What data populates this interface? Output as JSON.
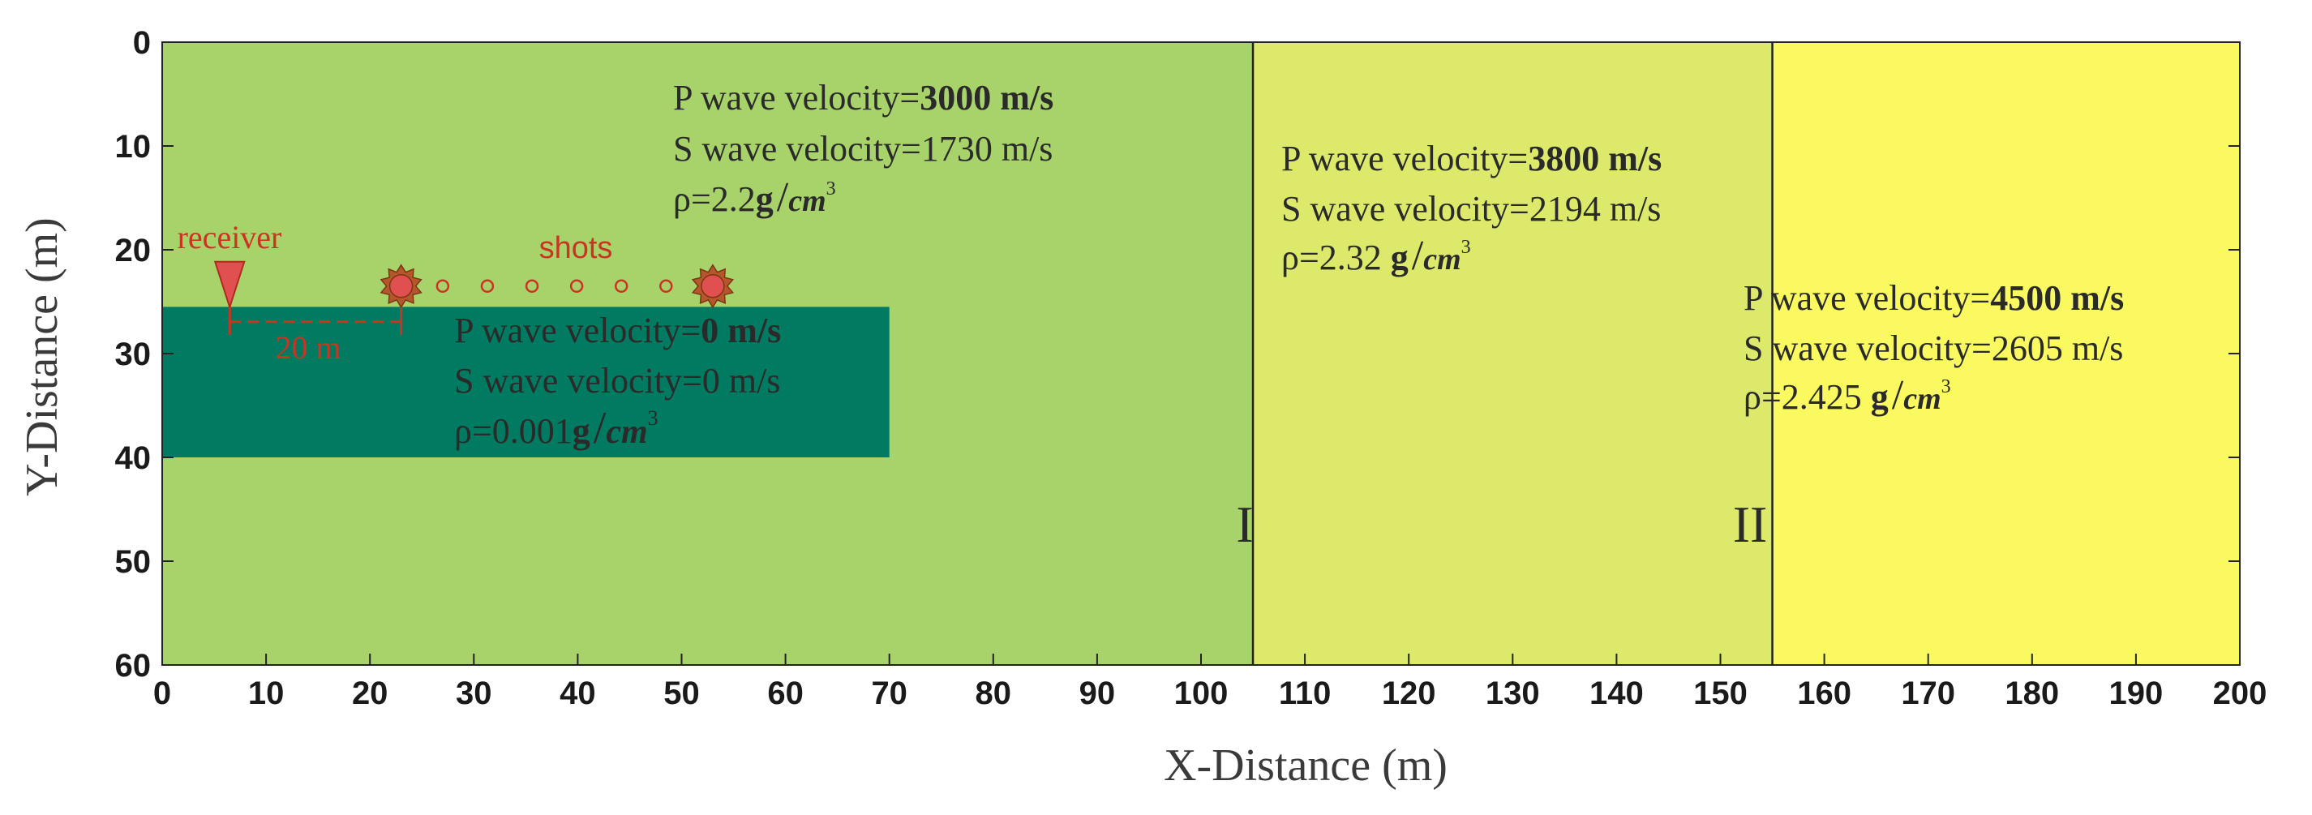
{
  "axes": {
    "x_title": "X-Distance (m)",
    "y_title": "Y-Distance (m)",
    "x_range": [
      0,
      200
    ],
    "y_range": [
      0,
      60
    ],
    "x_ticks": [
      "0",
      "10",
      "20",
      "30",
      "40",
      "50",
      "60",
      "70",
      "80",
      "90",
      "100",
      "110",
      "120",
      "130",
      "140",
      "150",
      "160",
      "170",
      "180",
      "190",
      "200"
    ],
    "y_ticks": [
      "0",
      "10",
      "20",
      "30",
      "40",
      "50",
      "60"
    ]
  },
  "colors": {
    "layer1": "#a8d36a",
    "layer2": "#dde96a",
    "layer3": "#fafa60",
    "cavity": "#007a60",
    "marker": "#e05050",
    "annotation": "#cc3322"
  },
  "layers": [
    {
      "x_range": [
        0,
        105
      ],
      "p_prefix": "P  wave velocity=",
      "p_value": "3000 m/s",
      "s_prefix": "S wave velocity=",
      "s_value": "1730 m/s",
      "rho_prefix": "ρ=2.2",
      "rho_unit": "g",
      "rho_cm": "cm",
      "rho_exp": "3"
    },
    {
      "x_range": [
        105,
        155
      ],
      "boundary_label": "I",
      "p_prefix": "P  wave velocity=",
      "p_value": "3800 m/s",
      "s_prefix": "S wave velocity=",
      "s_value": "2194 m/s",
      "rho_prefix": "ρ=2.32 ",
      "rho_unit": "g",
      "rho_cm": "cm",
      "rho_exp": "3"
    },
    {
      "x_range": [
        155,
        200
      ],
      "boundary_label": "II",
      "p_prefix": "P  wave velocity=",
      "p_value": "4500 m/s",
      "s_prefix": "S wave velocity=",
      "s_value": "2605 m/s",
      "rho_prefix": "ρ=2.425 ",
      "rho_unit": "g",
      "rho_cm": "cm",
      "rho_exp": "3"
    }
  ],
  "cavity": {
    "x_range": [
      0,
      70
    ],
    "y_range": [
      25.5,
      40
    ],
    "p_prefix": "P  wave velocity=",
    "p_value": "0 m/s",
    "s_prefix": "S wave velocity=",
    "s_value": "0 m/s",
    "rho_prefix": "ρ=0.001",
    "rho_unit": "g",
    "rho_cm": "cm",
    "rho_exp": "3"
  },
  "acquisition": {
    "receiver_label": "receiver",
    "receiver_x": 6.5,
    "shots_label": "shots",
    "offset_label": "20 m",
    "shot_stars_x": [
      23,
      53
    ],
    "shot_circles_x": [
      27,
      31.3,
      35.6,
      39.9,
      44.2,
      48.5
    ],
    "depth": 23.5
  }
}
